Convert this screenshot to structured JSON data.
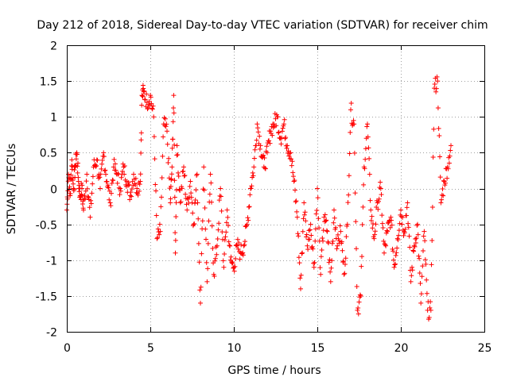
{
  "chart_data": {
    "type": "scatter",
    "title": "Day 212 of 2018, Sidereal Day-to-day VTEC variation (SDTVAR) for receiver chim",
    "xlabel": "GPS time / hours",
    "ylabel": "SDTVAR / TECUs",
    "xlim": [
      0,
      25
    ],
    "ylim": [
      -2,
      2
    ],
    "xticks": [
      0,
      5,
      10,
      15,
      20,
      25
    ],
    "xtick_labels": [
      "0",
      "5",
      "10",
      "15",
      "20",
      "25"
    ],
    "yticks": [
      -2,
      -1.5,
      -1,
      -0.5,
      0,
      0.5,
      1,
      1.5,
      2
    ],
    "ytick_labels": [
      "-2",
      "-1.5",
      "-1",
      "-0.5",
      "0",
      "0.5",
      "1",
      "1.5",
      "2"
    ],
    "grid": true,
    "marker": "+",
    "series": [
      {
        "name": "SDTVAR",
        "color": "#ff0000",
        "x": [
          0.0,
          0.1,
          0.2,
          0.3,
          0.4,
          0.5,
          0.6,
          0.7,
          0.8,
          0.9,
          1.0,
          1.2,
          1.4,
          1.6,
          1.8,
          2.0,
          2.2,
          2.4,
          2.6,
          2.8,
          3.0,
          3.2,
          3.4,
          3.6,
          3.8,
          4.0,
          4.2,
          4.4,
          4.5,
          4.6,
          4.8,
          5.0,
          5.2,
          5.4,
          5.6,
          5.8,
          6.0,
          6.2,
          6.3,
          6.4,
          6.5,
          6.6,
          6.8,
          7.0,
          7.2,
          7.4,
          7.6,
          7.8,
          8.0,
          8.2,
          8.4,
          8.6,
          8.8,
          9.0,
          9.2,
          9.4,
          9.6,
          9.8,
          10.0,
          10.2,
          10.4,
          10.6,
          10.8,
          11.0,
          11.2,
          11.4,
          11.6,
          11.8,
          12.0,
          12.2,
          12.4,
          12.6,
          12.8,
          13.0,
          13.2,
          13.4,
          13.6,
          13.8,
          14.0,
          14.2,
          14.4,
          14.6,
          14.8,
          15.0,
          15.2,
          15.4,
          15.6,
          15.8,
          16.0,
          16.2,
          16.4,
          16.6,
          16.8,
          17.0,
          17.2,
          17.4,
          17.6,
          17.8,
          18.0,
          18.2,
          18.4,
          18.6,
          18.8,
          19.0,
          19.2,
          19.4,
          19.6,
          19.8,
          20.0,
          20.2,
          20.4,
          20.6,
          20.8,
          21.0,
          21.2,
          21.4,
          21.6,
          21.8,
          22.0,
          22.2,
          22.4,
          22.6,
          22.8,
          23.0
        ],
        "y": [
          -0.3,
          0.2,
          -0.1,
          0.4,
          0.0,
          0.3,
          0.5,
          0.1,
          -0.1,
          0.0,
          -0.3,
          0.2,
          -0.4,
          0.3,
          0.4,
          0.0,
          0.5,
          0.1,
          -0.2,
          0.3,
          0.2,
          0.0,
          0.3,
          0.1,
          -0.1,
          0.2,
          0.0,
          0.1,
          1.3,
          1.35,
          1.2,
          1.3,
          1.0,
          -0.7,
          -0.6,
          0.9,
          0.8,
          -0.2,
          0.3,
          1.3,
          -0.9,
          0.6,
          -0.2,
          0.3,
          -0.3,
          0.1,
          -0.5,
          0.2,
          -1.6,
          0.3,
          -1.3,
          0.2,
          -1.2,
          -0.8,
          0.0,
          -1.1,
          -0.3,
          -1.0,
          -1.1,
          -0.8,
          -0.9,
          -0.8,
          -0.5,
          0.0,
          0.3,
          0.9,
          0.6,
          0.3,
          0.5,
          0.8,
          0.9,
          1.0,
          0.7,
          0.9,
          0.6,
          0.5,
          0.1,
          -0.4,
          -1.4,
          -0.2,
          -0.8,
          -0.5,
          -1.1,
          0.0,
          -1.2,
          -0.4,
          -0.6,
          -1.3,
          -0.3,
          -0.8,
          -0.6,
          -1.2,
          -0.5,
          1.1,
          0.9,
          -1.7,
          -1.5,
          0.3,
          0.9,
          -0.3,
          -0.7,
          -0.2,
          0.0,
          -0.9,
          -0.6,
          -0.4,
          -1.1,
          -0.7,
          -0.3,
          -0.6,
          -0.2,
          -1.3,
          -0.8,
          -0.5,
          -1.6,
          -0.6,
          -1.7,
          -1.7,
          1.4,
          1.5,
          -0.2,
          0.1,
          0.3,
          0.6
        ]
      }
    ]
  }
}
